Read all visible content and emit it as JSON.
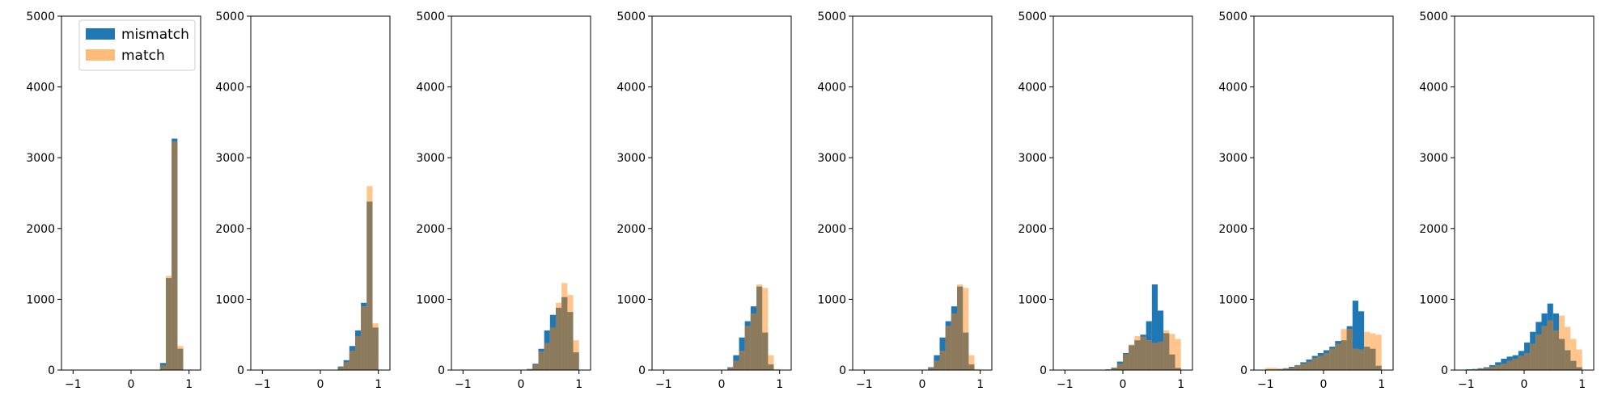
{
  "figure": {
    "legend_location": "upper right of first panel",
    "colors": {
      "mismatch": "#1f77b4",
      "match": "#ffbb78",
      "overlap": "#8c7a5c"
    }
  },
  "chart_data": [
    {
      "type": "histogram",
      "legend": [
        {
          "name": "mismatch",
          "color": "#1f77b4"
        },
        {
          "name": "match",
          "color": "#ffbb78"
        }
      ],
      "xlim": [
        -1.2,
        1.2
      ],
      "ylim": [
        0,
        5000
      ],
      "xticks": [
        -1,
        0,
        1
      ],
      "yticks": [
        0,
        1000,
        2000,
        3000,
        4000,
        5000
      ],
      "bins": [
        {
          "x0": 0.5,
          "x1": 0.6,
          "mismatch": 100,
          "match": 60
        },
        {
          "x0": 0.6,
          "x1": 0.7,
          "mismatch": 1300,
          "match": 1330
        },
        {
          "x0": 0.7,
          "x1": 0.8,
          "mismatch": 3270,
          "match": 3230
        },
        {
          "x0": 0.8,
          "x1": 0.9,
          "mismatch": 300,
          "match": 340
        }
      ]
    },
    {
      "type": "histogram",
      "xlim": [
        -1.2,
        1.2
      ],
      "ylim": [
        0,
        5000
      ],
      "xticks": [
        -1,
        0,
        1
      ],
      "yticks": [
        0,
        1000,
        2000,
        3000,
        4000,
        5000
      ],
      "bins": [
        {
          "x0": 0.3,
          "x1": 0.4,
          "mismatch": 50,
          "match": 40
        },
        {
          "x0": 0.4,
          "x1": 0.5,
          "mismatch": 140,
          "match": 110
        },
        {
          "x0": 0.5,
          "x1": 0.6,
          "mismatch": 340,
          "match": 270
        },
        {
          "x0": 0.6,
          "x1": 0.7,
          "mismatch": 560,
          "match": 480
        },
        {
          "x0": 0.7,
          "x1": 0.8,
          "mismatch": 950,
          "match": 900
        },
        {
          "x0": 0.8,
          "x1": 0.9,
          "mismatch": 2380,
          "match": 2600
        },
        {
          "x0": 0.9,
          "x1": 1.0,
          "mismatch": 600,
          "match": 660
        }
      ]
    },
    {
      "type": "histogram",
      "xlim": [
        -1.2,
        1.2
      ],
      "ylim": [
        0,
        5000
      ],
      "xticks": [
        -1,
        0,
        1
      ],
      "yticks": [
        0,
        1000,
        2000,
        3000,
        4000,
        5000
      ],
      "bins": [
        {
          "x0": 0.1,
          "x1": 0.2,
          "mismatch": 15,
          "match": 15
        },
        {
          "x0": 0.2,
          "x1": 0.3,
          "mismatch": 90,
          "match": 80
        },
        {
          "x0": 0.3,
          "x1": 0.4,
          "mismatch": 300,
          "match": 260
        },
        {
          "x0": 0.4,
          "x1": 0.5,
          "mismatch": 560,
          "match": 380
        },
        {
          "x0": 0.5,
          "x1": 0.6,
          "mismatch": 780,
          "match": 600
        },
        {
          "x0": 0.6,
          "x1": 0.7,
          "mismatch": 880,
          "match": 950
        },
        {
          "x0": 0.7,
          "x1": 0.8,
          "mismatch": 1030,
          "match": 1230
        },
        {
          "x0": 0.8,
          "x1": 0.9,
          "mismatch": 820,
          "match": 1060
        },
        {
          "x0": 0.9,
          "x1": 1.0,
          "mismatch": 250,
          "match": 420
        }
      ]
    },
    {
      "type": "histogram",
      "xlim": [
        -1.2,
        1.2
      ],
      "ylim": [
        0,
        5000
      ],
      "xticks": [
        -1,
        0,
        1
      ],
      "yticks": [
        0,
        1000,
        2000,
        3000,
        4000,
        5000
      ],
      "bins": [
        {
          "x0": 0.1,
          "x1": 0.2,
          "mismatch": 40,
          "match": 30
        },
        {
          "x0": 0.2,
          "x1": 0.3,
          "mismatch": 210,
          "match": 130
        },
        {
          "x0": 0.3,
          "x1": 0.4,
          "mismatch": 460,
          "match": 270
        },
        {
          "x0": 0.4,
          "x1": 0.5,
          "mismatch": 690,
          "match": 620
        },
        {
          "x0": 0.5,
          "x1": 0.6,
          "mismatch": 900,
          "match": 800
        },
        {
          "x0": 0.6,
          "x1": 0.7,
          "mismatch": 1180,
          "match": 1210
        },
        {
          "x0": 0.7,
          "x1": 0.8,
          "mismatch": 530,
          "match": 1160
        },
        {
          "x0": 0.8,
          "x1": 0.9,
          "mismatch": 80,
          "match": 210
        },
        {
          "x0": 0.9,
          "x1": 1.0,
          "mismatch": 5,
          "match": 15
        }
      ]
    },
    {
      "type": "histogram",
      "xlim": [
        -1.2,
        1.2
      ],
      "ylim": [
        0,
        5000
      ],
      "xticks": [
        -1,
        0,
        1
      ],
      "yticks": [
        0,
        1000,
        2000,
        3000,
        4000,
        5000
      ],
      "bins": [
        {
          "x0": 0.1,
          "x1": 0.2,
          "mismatch": 40,
          "match": 30
        },
        {
          "x0": 0.2,
          "x1": 0.3,
          "mismatch": 210,
          "match": 130
        },
        {
          "x0": 0.3,
          "x1": 0.4,
          "mismatch": 460,
          "match": 270
        },
        {
          "x0": 0.4,
          "x1": 0.5,
          "mismatch": 690,
          "match": 620
        },
        {
          "x0": 0.5,
          "x1": 0.6,
          "mismatch": 900,
          "match": 800
        },
        {
          "x0": 0.6,
          "x1": 0.7,
          "mismatch": 1180,
          "match": 1210
        },
        {
          "x0": 0.7,
          "x1": 0.8,
          "mismatch": 530,
          "match": 1160
        },
        {
          "x0": 0.8,
          "x1": 0.9,
          "mismatch": 80,
          "match": 210
        },
        {
          "x0": 0.9,
          "x1": 1.0,
          "mismatch": 5,
          "match": 15
        }
      ]
    },
    {
      "type": "histogram",
      "xlim": [
        -1.2,
        1.2
      ],
      "ylim": [
        0,
        5000
      ],
      "xticks": [
        -1,
        0,
        1
      ],
      "yticks": [
        0,
        1000,
        2000,
        3000,
        4000,
        5000
      ],
      "bins": [
        {
          "x0": -0.3,
          "x1": -0.2,
          "mismatch": 10,
          "match": 10
        },
        {
          "x0": -0.2,
          "x1": -0.1,
          "mismatch": 35,
          "match": 30
        },
        {
          "x0": -0.1,
          "x1": 0.0,
          "mismatch": 120,
          "match": 90
        },
        {
          "x0": 0.0,
          "x1": 0.1,
          "mismatch": 240,
          "match": 220
        },
        {
          "x0": 0.1,
          "x1": 0.2,
          "mismatch": 350,
          "match": 360
        },
        {
          "x0": 0.2,
          "x1": 0.3,
          "mismatch": 420,
          "match": 480
        },
        {
          "x0": 0.3,
          "x1": 0.4,
          "mismatch": 500,
          "match": 470
        },
        {
          "x0": 0.4,
          "x1": 0.5,
          "mismatch": 690,
          "match": 420
        },
        {
          "x0": 0.5,
          "x1": 0.6,
          "mismatch": 1210,
          "match": 380
        },
        {
          "x0": 0.6,
          "x1": 0.7,
          "mismatch": 840,
          "match": 400
        },
        {
          "x0": 0.7,
          "x1": 0.8,
          "mismatch": 520,
          "match": 560
        },
        {
          "x0": 0.8,
          "x1": 0.9,
          "mismatch": 220,
          "match": 510
        },
        {
          "x0": 0.9,
          "x1": 1.0,
          "mismatch": 30,
          "match": 440
        }
      ]
    },
    {
      "type": "histogram",
      "xlim": [
        -1.2,
        1.2
      ],
      "ylim": [
        0,
        5000
      ],
      "xticks": [
        -1,
        0,
        1
      ],
      "yticks": [
        0,
        1000,
        2000,
        3000,
        4000,
        5000
      ],
      "bins": [
        {
          "x0": -1.0,
          "x1": -0.9,
          "mismatch": 10,
          "match": 30
        },
        {
          "x0": -0.9,
          "x1": -0.8,
          "mismatch": 10,
          "match": 30
        },
        {
          "x0": -0.8,
          "x1": -0.7,
          "mismatch": 15,
          "match": 15
        },
        {
          "x0": -0.7,
          "x1": -0.6,
          "mismatch": 25,
          "match": 20
        },
        {
          "x0": -0.6,
          "x1": -0.5,
          "mismatch": 45,
          "match": 30
        },
        {
          "x0": -0.5,
          "x1": -0.4,
          "mismatch": 70,
          "match": 60
        },
        {
          "x0": -0.4,
          "x1": -0.3,
          "mismatch": 110,
          "match": 90
        },
        {
          "x0": -0.3,
          "x1": -0.2,
          "mismatch": 150,
          "match": 120
        },
        {
          "x0": -0.2,
          "x1": -0.1,
          "mismatch": 200,
          "match": 170
        },
        {
          "x0": -0.1,
          "x1": 0.0,
          "mismatch": 240,
          "match": 200
        },
        {
          "x0": 0.0,
          "x1": 0.1,
          "mismatch": 280,
          "match": 240
        },
        {
          "x0": 0.1,
          "x1": 0.2,
          "mismatch": 330,
          "match": 300
        },
        {
          "x0": 0.2,
          "x1": 0.3,
          "mismatch": 410,
          "match": 370
        },
        {
          "x0": 0.3,
          "x1": 0.4,
          "mismatch": 420,
          "match": 580
        },
        {
          "x0": 0.4,
          "x1": 0.5,
          "mismatch": 620,
          "match": 580
        },
        {
          "x0": 0.5,
          "x1": 0.6,
          "mismatch": 980,
          "match": 300
        },
        {
          "x0": 0.6,
          "x1": 0.7,
          "mismatch": 830,
          "match": 290
        },
        {
          "x0": 0.7,
          "x1": 0.8,
          "mismatch": 330,
          "match": 540
        },
        {
          "x0": 0.8,
          "x1": 0.9,
          "mismatch": 300,
          "match": 520
        },
        {
          "x0": 0.9,
          "x1": 1.0,
          "mismatch": 60,
          "match": 500
        }
      ]
    },
    {
      "type": "histogram",
      "xlim": [
        -1.2,
        1.2
      ],
      "ylim": [
        0,
        5000
      ],
      "xticks": [
        -1,
        0,
        1
      ],
      "yticks": [
        0,
        1000,
        2000,
        3000,
        4000,
        5000
      ],
      "bins": [
        {
          "x0": -1.0,
          "x1": -0.9,
          "mismatch": 10,
          "match": 5
        },
        {
          "x0": -0.9,
          "x1": -0.8,
          "mismatch": 15,
          "match": 10
        },
        {
          "x0": -0.8,
          "x1": -0.7,
          "mismatch": 25,
          "match": 15
        },
        {
          "x0": -0.7,
          "x1": -0.6,
          "mismatch": 40,
          "match": 30
        },
        {
          "x0": -0.6,
          "x1": -0.5,
          "mismatch": 70,
          "match": 45
        },
        {
          "x0": -0.5,
          "x1": -0.4,
          "mismatch": 110,
          "match": 70
        },
        {
          "x0": -0.4,
          "x1": -0.3,
          "mismatch": 160,
          "match": 90
        },
        {
          "x0": -0.3,
          "x1": -0.2,
          "mismatch": 190,
          "match": 130
        },
        {
          "x0": -0.2,
          "x1": -0.1,
          "mismatch": 210,
          "match": 160
        },
        {
          "x0": -0.1,
          "x1": 0.0,
          "mismatch": 270,
          "match": 200
        },
        {
          "x0": 0.0,
          "x1": 0.1,
          "mismatch": 390,
          "match": 240
        },
        {
          "x0": 0.1,
          "x1": 0.2,
          "mismatch": 540,
          "match": 370
        },
        {
          "x0": 0.2,
          "x1": 0.3,
          "mismatch": 680,
          "match": 500
        },
        {
          "x0": 0.3,
          "x1": 0.4,
          "mismatch": 800,
          "match": 620
        },
        {
          "x0": 0.4,
          "x1": 0.5,
          "mismatch": 940,
          "match": 700
        },
        {
          "x0": 0.5,
          "x1": 0.6,
          "mismatch": 800,
          "match": 560
        },
        {
          "x0": 0.6,
          "x1": 0.7,
          "mismatch": 440,
          "match": 770
        },
        {
          "x0": 0.7,
          "x1": 0.8,
          "mismatch": 280,
          "match": 610
        },
        {
          "x0": 0.8,
          "x1": 0.9,
          "mismatch": 130,
          "match": 440
        },
        {
          "x0": 0.9,
          "x1": 1.0,
          "mismatch": 40,
          "match": 290
        }
      ]
    }
  ]
}
